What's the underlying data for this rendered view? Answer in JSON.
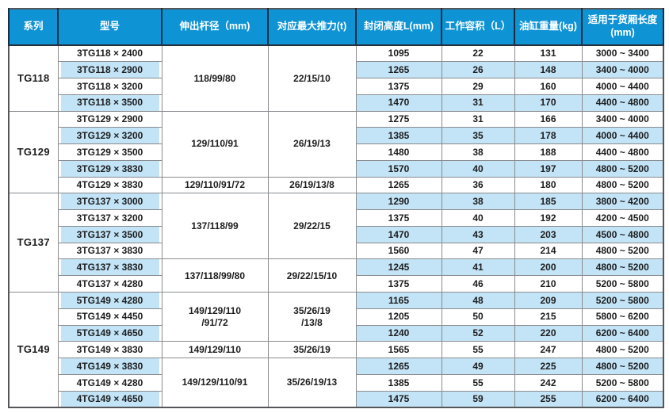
{
  "table": {
    "headers": [
      "系列",
      "型号",
      "伸出杆径（mm)",
      "对应最大推力(t)",
      "封闭高度L(mm)",
      "工作容积（L）",
      "油缸重量(kg)",
      "适用于货厢长度\n(mm)"
    ],
    "groups": [
      {
        "series": "TG118",
        "rows": [
          {
            "model": "3TG118 × 2400",
            "closed_height": "1095",
            "volume": "22",
            "weight": "131",
            "box_length": "3000 ~ 3400"
          },
          {
            "model": "3TG118 × 2900",
            "closed_height": "1265",
            "volume": "26",
            "weight": "148",
            "box_length": "3400 ~ 4000"
          },
          {
            "model": "3TG118 × 3200",
            "closed_height": "1375",
            "volume": "29",
            "weight": "160",
            "box_length": "4000 ~ 4400"
          },
          {
            "model": "3TG118 × 3500",
            "closed_height": "1470",
            "volume": "31",
            "weight": "170",
            "box_length": "4400 ~ 4800"
          }
        ],
        "specs": [
          {
            "rod": "118/99/80",
            "thrust": "22/15/10",
            "rowspan": 4
          }
        ]
      },
      {
        "series": "TG129",
        "rows": [
          {
            "model": "3TG129 × 2900",
            "closed_height": "1275",
            "volume": "31",
            "weight": "166",
            "box_length": "3400 ~ 4000"
          },
          {
            "model": "3TG129 × 3200",
            "closed_height": "1385",
            "volume": "35",
            "weight": "178",
            "box_length": "4000 ~ 4400"
          },
          {
            "model": "3TG129 × 3500",
            "closed_height": "1480",
            "volume": "38",
            "weight": "188",
            "box_length": "4400 ~ 4800"
          },
          {
            "model": "3TG129 × 3830",
            "closed_height": "1570",
            "volume": "40",
            "weight": "197",
            "box_length": "4800 ~ 5200"
          },
          {
            "model": "4TG129 × 3830",
            "closed_height": "1265",
            "volume": "36",
            "weight": "180",
            "box_length": "4800 ~ 5200"
          }
        ],
        "specs": [
          {
            "rod": "129/110/91",
            "thrust": "26/19/13",
            "rowspan": 4
          },
          {
            "rod": "129/110/91/72",
            "thrust": "26/19/13/8",
            "rowspan": 1
          }
        ]
      },
      {
        "series": "TG137",
        "rows": [
          {
            "model": "3TG137 × 3000",
            "closed_height": "1290",
            "volume": "38",
            "weight": "185",
            "box_length": "3800 ~ 4200"
          },
          {
            "model": "3TG137 × 3200",
            "closed_height": "1375",
            "volume": "40",
            "weight": "192",
            "box_length": "4200 ~ 4500"
          },
          {
            "model": "3TG137 × 3500",
            "closed_height": "1470",
            "volume": "43",
            "weight": "203",
            "box_length": "4500 ~ 4800"
          },
          {
            "model": "3TG137 × 3830",
            "closed_height": "1560",
            "volume": "47",
            "weight": "214",
            "box_length": "4800 ~ 5200"
          },
          {
            "model": "4TG137 × 3830",
            "closed_height": "1245",
            "volume": "41",
            "weight": "200",
            "box_length": "4800 ~ 5200"
          },
          {
            "model": "4TG137 × 4280",
            "closed_height": "1375",
            "volume": "46",
            "weight": "210",
            "box_length": "5200 ~ 5800"
          }
        ],
        "specs": [
          {
            "rod": "137/118/99",
            "thrust": "29/22/15",
            "rowspan": 4
          },
          {
            "rod": "137/118/99/80",
            "thrust": "29/22/15/10",
            "rowspan": 2
          }
        ]
      },
      {
        "series": "TG149",
        "rows": [
          {
            "model": "5TG149 × 4280",
            "closed_height": "1165",
            "volume": "48",
            "weight": "209",
            "box_length": "5200 ~ 5800"
          },
          {
            "model": "5TG149 × 4450",
            "closed_height": "1205",
            "volume": "50",
            "weight": "215",
            "box_length": "5800 ~ 6200"
          },
          {
            "model": "5TG149 × 4650",
            "closed_height": "1240",
            "volume": "52",
            "weight": "220",
            "box_length": "6200 ~ 6400"
          },
          {
            "model": "3TG149 × 3830",
            "closed_height": "1565",
            "volume": "55",
            "weight": "247",
            "box_length": "4800 ~ 5200"
          },
          {
            "model": "4TG149 × 3830",
            "closed_height": "1265",
            "volume": "49",
            "weight": "225",
            "box_length": "4800 ~ 5200"
          },
          {
            "model": "4TG149 × 4280",
            "closed_height": "1385",
            "volume": "55",
            "weight": "242",
            "box_length": "5200 ~ 5800"
          },
          {
            "model": "4TG149 × 4650",
            "closed_height": "1475",
            "volume": "59",
            "weight": "255",
            "box_length": "6200 ~ 6400"
          }
        ],
        "specs": [
          {
            "rod": "149/129/110\n/91/72",
            "thrust": "35/26/19\n/13/8",
            "rowspan": 3
          },
          {
            "rod": "149/129/110",
            "thrust": "35/26/19",
            "rowspan": 1
          },
          {
            "rod": "149/129/110/91",
            "thrust": "35/26/19/13",
            "rowspan": 3
          }
        ]
      }
    ]
  },
  "colors": {
    "header_bg": "#0e93d4",
    "header_divider": "#1c2c40",
    "header_text": "#ffffff",
    "row_alt_bg": "#c3e4f6",
    "grid_line": "#8a8b8e",
    "outer_border": "#55565a",
    "body_text": "#1d1d1f"
  }
}
